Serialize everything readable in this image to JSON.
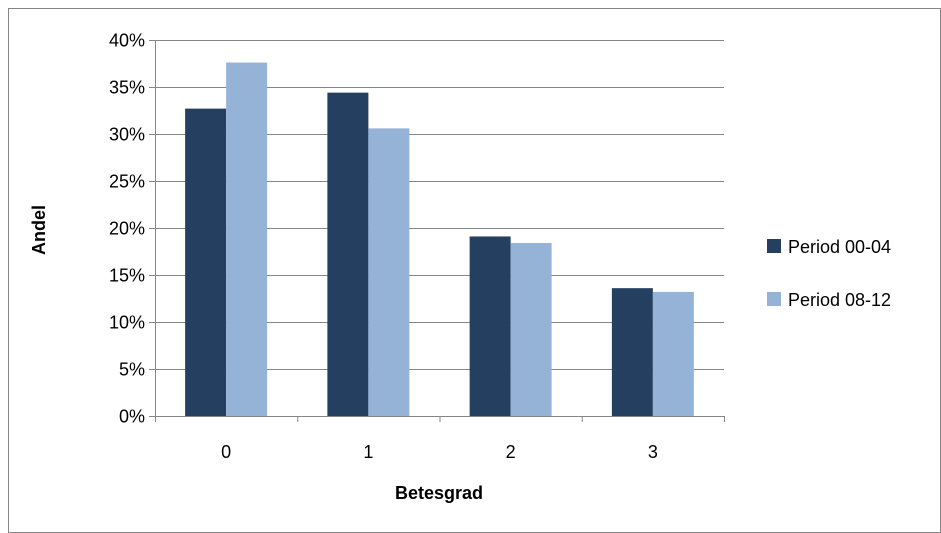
{
  "chart_data": {
    "type": "bar",
    "categories": [
      "0",
      "1",
      "2",
      "3"
    ],
    "series": [
      {
        "name": "Period 00-04",
        "values": [
          0.327,
          0.344,
          0.191,
          0.136
        ],
        "color": "#243f60"
      },
      {
        "name": "Period 08-12",
        "values": [
          0.376,
          0.306,
          0.184,
          0.132
        ],
        "color": "#95b3d7"
      }
    ],
    "xlabel": "Betesgrad",
    "ylabel": "Andel",
    "ylim": [
      0,
      0.4
    ],
    "yticks": [
      "0%",
      "5%",
      "10%",
      "15%",
      "20%",
      "25%",
      "30%",
      "35%",
      "40%"
    ],
    "grid": true,
    "legend_position": "right",
    "border_color": "#868686",
    "grid_color": "#868686"
  }
}
